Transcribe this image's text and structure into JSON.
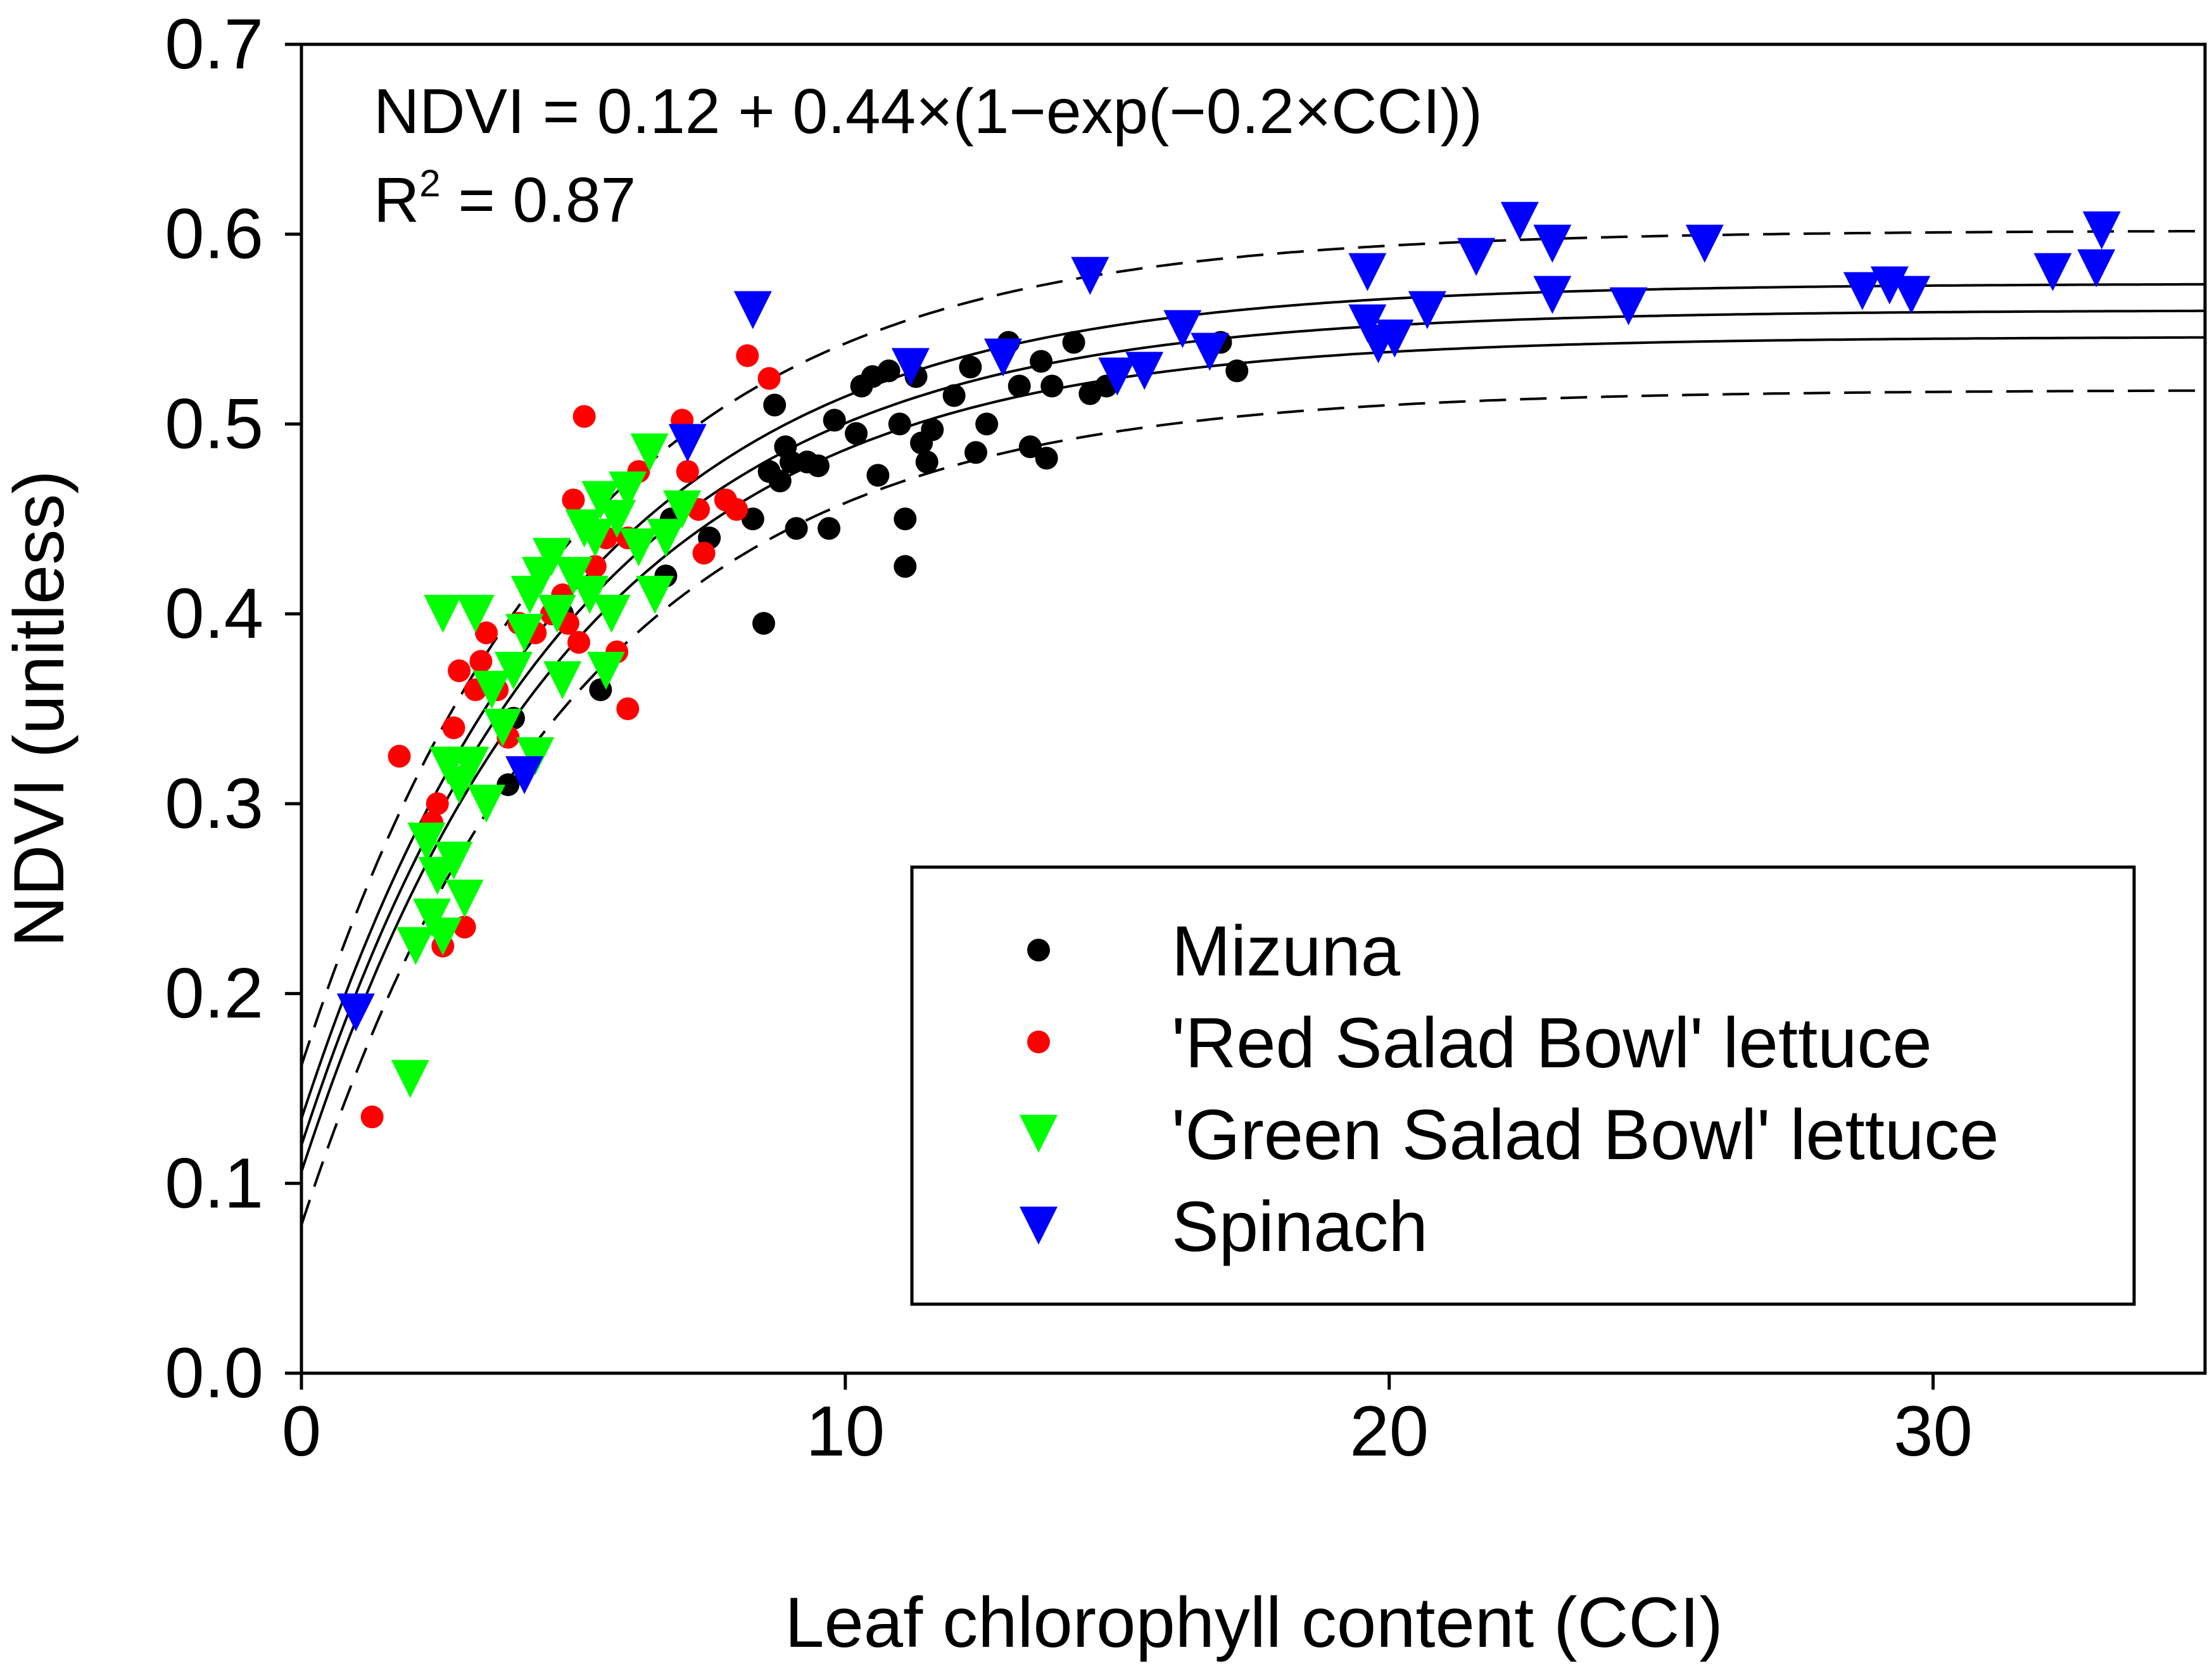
{
  "chart_data": {
    "type": "scatter",
    "title": "",
    "xlabel": "Leaf chlorophyll content (CCI)",
    "ylabel": "NDVI (unitless)",
    "xlim": [
      0,
      35
    ],
    "ylim": [
      0,
      0.7
    ],
    "x_ticks": [
      "0",
      "10",
      "20",
      "30"
    ],
    "x_tick_values": [
      0,
      10,
      20,
      30
    ],
    "y_ticks": [
      "0.0",
      "0.1",
      "0.2",
      "0.3",
      "0.4",
      "0.5",
      "0.6",
      "0.7"
    ],
    "y_tick_values": [
      0,
      0.1,
      0.2,
      0.3,
      0.4,
      0.5,
      0.6,
      0.7
    ],
    "grid": false,
    "legend_position": "bottom-right",
    "annotations": {
      "equation": "NDVI = 0.12 + 0.44×(1−exp(−0.2×CCI))",
      "r2_base": "R",
      "r2_exp": "2",
      "r2_rest": " = 0.87"
    },
    "fit": {
      "model": "NDVI = a + b*(1-exp(-c*CCI))",
      "a": 0.12,
      "b": 0.44,
      "c": 0.2,
      "ci_offset": 0.014,
      "pi_offset": 0.042
    },
    "series": [
      {
        "name": "Mizuna",
        "color": "#000000",
        "marker": "circle",
        "points": [
          [
            3.8,
            0.31
          ],
          [
            3.9,
            0.345
          ],
          [
            4.8,
            0.4
          ],
          [
            5.5,
            0.36
          ],
          [
            6.7,
            0.42
          ],
          [
            6.8,
            0.45
          ],
          [
            7.5,
            0.44
          ],
          [
            8.3,
            0.45
          ],
          [
            8.5,
            0.395
          ],
          [
            8.6,
            0.475
          ],
          [
            8.7,
            0.51
          ],
          [
            8.8,
            0.47
          ],
          [
            9.0,
            0.48
          ],
          [
            8.9,
            0.488
          ],
          [
            9.1,
            0.445
          ],
          [
            9.3,
            0.48
          ],
          [
            9.5,
            0.478
          ],
          [
            9.7,
            0.445
          ],
          [
            9.8,
            0.502
          ],
          [
            10.2,
            0.495
          ],
          [
            10.3,
            0.52
          ],
          [
            10.5,
            0.525
          ],
          [
            10.6,
            0.473
          ],
          [
            10.8,
            0.528
          ],
          [
            11.0,
            0.5
          ],
          [
            11.1,
            0.45
          ],
          [
            11.1,
            0.425
          ],
          [
            11.3,
            0.525
          ],
          [
            11.4,
            0.49
          ],
          [
            11.5,
            0.48
          ],
          [
            11.6,
            0.497
          ],
          [
            12.0,
            0.515
          ],
          [
            12.3,
            0.53
          ],
          [
            12.4,
            0.485
          ],
          [
            12.6,
            0.5
          ],
          [
            13.0,
            0.543
          ],
          [
            13.2,
            0.52
          ],
          [
            13.4,
            0.488
          ],
          [
            13.6,
            0.533
          ],
          [
            13.7,
            0.482
          ],
          [
            13.8,
            0.52
          ],
          [
            14.2,
            0.543
          ],
          [
            14.5,
            0.516
          ],
          [
            14.8,
            0.52
          ],
          [
            16.9,
            0.543
          ],
          [
            17.2,
            0.528
          ]
        ]
      },
      {
        "name": "'Red Salad Bowl' lettuce",
        "color": "#ff0000",
        "marker": "circle",
        "points": [
          [
            1.3,
            0.135
          ],
          [
            1.8,
            0.325
          ],
          [
            2.4,
            0.29
          ],
          [
            2.5,
            0.3
          ],
          [
            2.6,
            0.225
          ],
          [
            2.8,
            0.34
          ],
          [
            2.9,
            0.37
          ],
          [
            3.0,
            0.235
          ],
          [
            3.2,
            0.36
          ],
          [
            3.3,
            0.375
          ],
          [
            3.4,
            0.39
          ],
          [
            3.6,
            0.36
          ],
          [
            4.0,
            0.395
          ],
          [
            4.3,
            0.39
          ],
          [
            4.6,
            0.4
          ],
          [
            4.8,
            0.41
          ],
          [
            5.0,
            0.46
          ],
          [
            5.1,
            0.385
          ],
          [
            5.2,
            0.504
          ],
          [
            5.4,
            0.425
          ],
          [
            5.6,
            0.44
          ],
          [
            5.8,
            0.38
          ],
          [
            6.0,
            0.35
          ],
          [
            6.0,
            0.44
          ],
          [
            6.2,
            0.475
          ],
          [
            7.0,
            0.502
          ],
          [
            7.1,
            0.475
          ],
          [
            7.3,
            0.455
          ],
          [
            7.4,
            0.432
          ],
          [
            7.8,
            0.46
          ],
          [
            8.0,
            0.455
          ],
          [
            8.2,
            0.536
          ],
          [
            8.6,
            0.524
          ],
          [
            3.8,
            0.335
          ],
          [
            4.9,
            0.395
          ]
        ]
      },
      {
        "name": "'Green Salad Bowl' lettuce",
        "color": "#00ff00",
        "marker": "triangle-down",
        "points": [
          [
            2.0,
            0.155
          ],
          [
            2.1,
            0.225
          ],
          [
            2.3,
            0.28
          ],
          [
            2.4,
            0.24
          ],
          [
            2.5,
            0.262
          ],
          [
            2.6,
            0.23
          ],
          [
            2.6,
            0.4
          ],
          [
            2.7,
            0.32
          ],
          [
            2.8,
            0.27
          ],
          [
            2.9,
            0.31
          ],
          [
            3.0,
            0.25
          ],
          [
            3.1,
            0.32
          ],
          [
            3.2,
            0.4
          ],
          [
            3.4,
            0.3
          ],
          [
            3.5,
            0.36
          ],
          [
            3.7,
            0.34
          ],
          [
            3.9,
            0.37
          ],
          [
            4.1,
            0.39
          ],
          [
            4.2,
            0.41
          ],
          [
            4.3,
            0.325
          ],
          [
            4.4,
            0.42
          ],
          [
            4.6,
            0.43
          ],
          [
            4.7,
            0.4
          ],
          [
            4.8,
            0.365
          ],
          [
            5.0,
            0.42
          ],
          [
            5.2,
            0.445
          ],
          [
            5.3,
            0.41
          ],
          [
            5.4,
            0.44
          ],
          [
            5.5,
            0.46
          ],
          [
            5.6,
            0.37
          ],
          [
            5.7,
            0.4
          ],
          [
            5.8,
            0.45
          ],
          [
            6.0,
            0.465
          ],
          [
            6.2,
            0.435
          ],
          [
            6.4,
            0.485
          ],
          [
            6.5,
            0.41
          ],
          [
            6.7,
            0.44
          ],
          [
            7.0,
            0.455
          ]
        ]
      },
      {
        "name": "Spinach",
        "color": "#0000ff",
        "marker": "triangle-down",
        "points": [
          [
            1.0,
            0.19
          ],
          [
            4.1,
            0.315
          ],
          [
            7.1,
            0.49
          ],
          [
            8.3,
            0.56
          ],
          [
            11.2,
            0.53
          ],
          [
            12.9,
            0.535
          ],
          [
            14.5,
            0.578
          ],
          [
            15.0,
            0.525
          ],
          [
            15.5,
            0.528
          ],
          [
            16.2,
            0.55
          ],
          [
            16.7,
            0.538
          ],
          [
            19.6,
            0.58
          ],
          [
            19.6,
            0.553
          ],
          [
            19.8,
            0.542
          ],
          [
            20.1,
            0.545
          ],
          [
            20.7,
            0.56
          ],
          [
            21.6,
            0.588
          ],
          [
            22.4,
            0.607
          ],
          [
            23.0,
            0.568
          ],
          [
            23.0,
            0.595
          ],
          [
            24.4,
            0.562
          ],
          [
            25.8,
            0.595
          ],
          [
            28.7,
            0.57
          ],
          [
            29.2,
            0.573
          ],
          [
            29.6,
            0.568
          ],
          [
            32.2,
            0.58
          ],
          [
            33.0,
            0.582
          ],
          [
            33.1,
            0.602
          ]
        ]
      }
    ]
  }
}
